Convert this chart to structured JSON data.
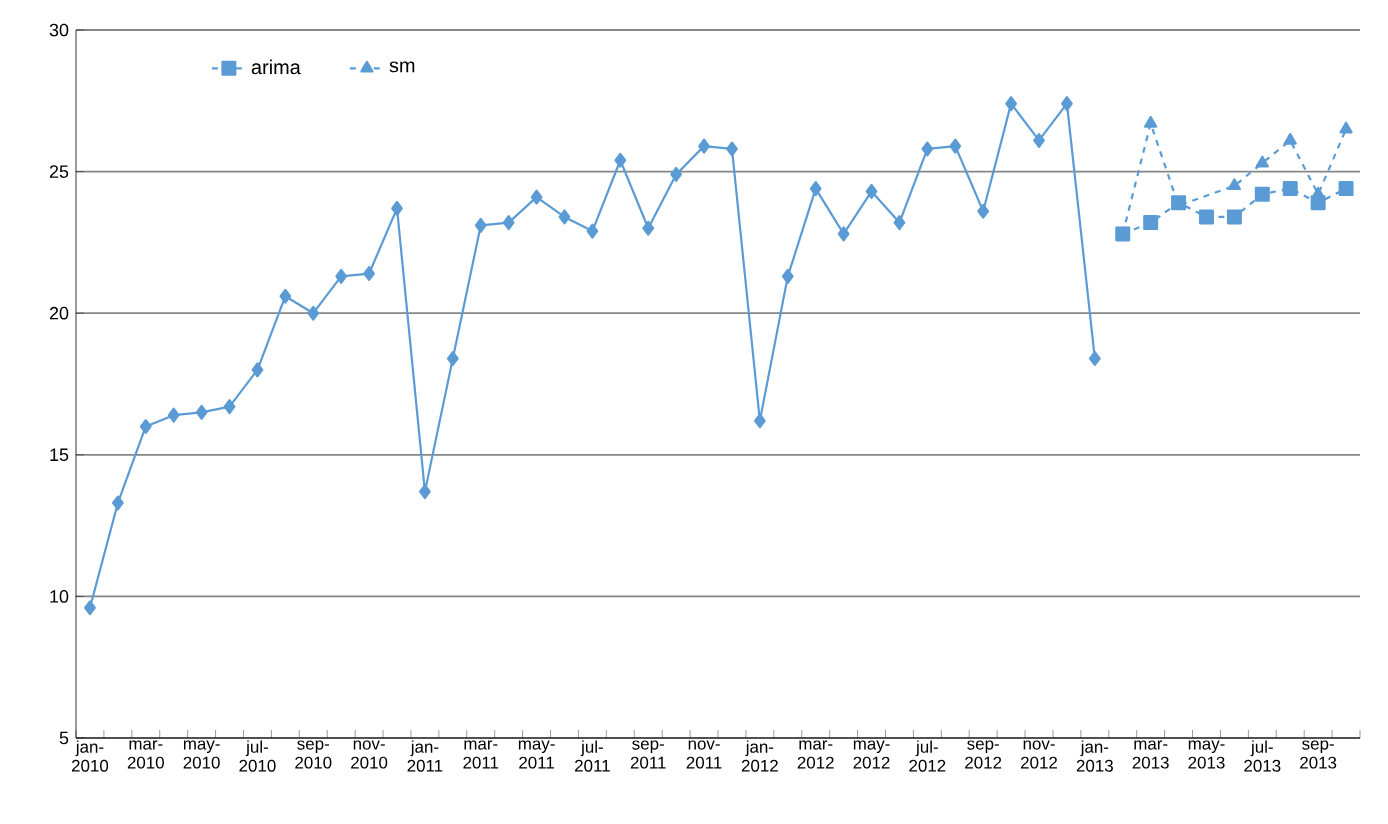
{
  "chart_data": {
    "type": "line",
    "categories": [
      "jan-2010",
      null,
      "mar-2010",
      null,
      "may-2010",
      null,
      "jul-2010",
      null,
      "sep-2010",
      null,
      "nov-2010",
      null,
      "jan-2011",
      null,
      "mar-2011",
      null,
      "may-2011",
      null,
      "jul-2011",
      null,
      "sep-2011",
      null,
      "nov-2011",
      null,
      "jan-2012",
      null,
      "mar-2012",
      null,
      "may-2012",
      null,
      "jul-2012",
      null,
      "sep-2012",
      null,
      "nov-2012",
      null,
      "jan-2013",
      null,
      "mar-2013",
      null,
      "may-2013",
      null,
      "jul-2013",
      null,
      "sep-2013",
      null
    ],
    "series": [
      {
        "color": "#5b9bd5",
        "marker": "diamond",
        "line_style": "solid",
        "values": [
          9.6,
          13.3,
          16.0,
          16.4,
          16.5,
          16.7,
          18.0,
          20.6,
          20.0,
          21.3,
          21.4,
          23.7,
          13.7,
          18.4,
          23.1,
          23.2,
          24.1,
          23.4,
          22.9,
          25.4,
          23.0,
          24.9,
          25.9,
          25.8,
          16.2,
          21.3,
          24.4,
          22.8,
          24.3,
          23.2,
          25.8,
          25.9,
          23.6,
          27.4,
          26.1,
          27.4,
          18.4,
          null,
          null,
          null,
          null,
          null,
          null,
          null,
          null,
          null
        ]
      },
      {
        "name": "arima",
        "color": "#5b9bd5",
        "marker": "square",
        "line_style": "dashed",
        "values": [
          null,
          null,
          null,
          null,
          null,
          null,
          null,
          null,
          null,
          null,
          null,
          null,
          null,
          null,
          null,
          null,
          null,
          null,
          null,
          null,
          null,
          null,
          null,
          null,
          null,
          null,
          null,
          null,
          null,
          null,
          null,
          null,
          null,
          null,
          null,
          null,
          null,
          22.8,
          23.2,
          23.9,
          23.4,
          23.4,
          24.2,
          24.4,
          23.9,
          24.4
        ]
      },
      {
        "name": "sm",
        "color": "#5b9bd5",
        "marker": "triangle",
        "line_style": "dashed",
        "values": [
          null,
          null,
          null,
          null,
          null,
          null,
          null,
          null,
          null,
          null,
          null,
          null,
          null,
          null,
          null,
          null,
          null,
          null,
          null,
          null,
          null,
          null,
          null,
          null,
          null,
          null,
          null,
          null,
          null,
          null,
          null,
          null,
          null,
          null,
          null,
          null,
          null,
          22.8,
          26.7,
          23.8,
          null,
          24.5,
          25.3,
          26.1,
          24.2,
          26.5
        ]
      }
    ],
    "ylim": [
      5,
      30
    ],
    "yticks": [
      5,
      10,
      15,
      20,
      25,
      30
    ],
    "grid": "y",
    "legend": "top left"
  }
}
